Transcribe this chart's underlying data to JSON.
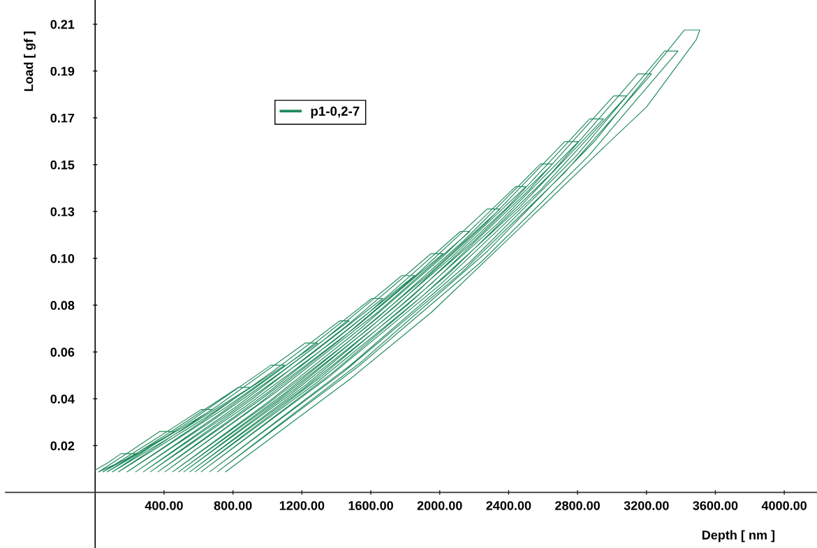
{
  "chart_data": {
    "type": "line",
    "xlabel": "Depth [ nm ]",
    "ylabel": "Load [ gf ]",
    "legend": "top left",
    "xlim": [
      -520,
      4190
    ],
    "ylim": [
      -0.0248,
      0.2198
    ],
    "xticks": [
      {
        "value": 400,
        "label": "400.00"
      },
      {
        "value": 800,
        "label": "800.00"
      },
      {
        "value": 1200,
        "label": "1200.00"
      },
      {
        "value": 1600,
        "label": "1600.00"
      },
      {
        "value": 2000,
        "label": "2000.00"
      },
      {
        "value": 2400,
        "label": "2400.00"
      },
      {
        "value": 2800,
        "label": "2800.00"
      },
      {
        "value": 3200,
        "label": "3200.00"
      },
      {
        "value": 3600,
        "label": "3600.00"
      },
      {
        "value": 4000,
        "label": "4000.00"
      }
    ],
    "yticks": [
      {
        "value": 0.0209,
        "label": "0.02"
      },
      {
        "value": 0.0418,
        "label": "0.04"
      },
      {
        "value": 0.0627,
        "label": "0.06"
      },
      {
        "value": 0.0836,
        "label": "0.08"
      },
      {
        "value": 0.1045,
        "label": "0.10"
      },
      {
        "value": 0.1254,
        "label": "0.13"
      },
      {
        "value": 0.1463,
        "label": "0.15"
      },
      {
        "value": 0.1672,
        "label": "0.17"
      },
      {
        "value": 0.1881,
        "label": "0.19"
      },
      {
        "value": 0.209,
        "label": "0.21"
      }
    ],
    "x": [
      0,
      75,
      150,
      250,
      136,
      20,
      200,
      375,
      465,
      257,
      45,
      335,
      615,
      680,
      380,
      70,
      459,
      830,
      900,
      510,
      100,
      574,
      1020,
      1100,
      632,
      135,
      698,
      1220,
      1292,
      759,
      185,
      621,
      1033,
      1420,
      1475,
      1086,
      673,
      235,
      723,
      1180,
      1605,
      1670,
      1239,
      775,
      280,
      820,
      1320,
      1780,
      1855,
      1384,
      872,
      320,
      912,
      1455,
      1950,
      2020,
      1518,
      966,
      365,
      1009,
      1594,
      2120,
      2175,
      1644,
      1054,
      405,
      931,
      1418,
      1866,
      2275,
      2350,
      1934,
      1479,
      984,
      450,
      1016,
      1536,
      2011,
      2440,
      2500,
      2065,
      1585,
      1058,
      485,
      1089,
      1640,
      2139,
      2585,
      2655,
      2201,
      1692,
      1131,
      515,
      1158,
      1741,
      2263,
      2725,
      2805,
      2334,
      1801,
      1206,
      550,
      1233,
      1847,
      2393,
      2870,
      2950,
      2463,
      1905,
      1278,
      580,
      1304,
      1951,
      2519,
      3010,
      3085,
      2586,
      2008,
      1351,
      615,
      1380,
      2057,
      2647,
      3150,
      3230,
      2721,
      2124,
      1439,
      665,
      1472,
      2180,
      2792,
      3305,
      3383,
      2863,
      2244,
      1527,
      710,
      1548,
      2279,
      2903,
      3420,
      3510,
      3489,
      3200,
      3000,
      2395,
      1955,
      1480,
      757
    ],
    "series": [
      {
        "name": "p1-0,2-7",
        "color": "#228b5e",
        "values": [
          0.01,
          0.0133,
          0.0173,
          0.0173,
          0.0133,
          0.0092,
          0.0182,
          0.0272,
          0.0272,
          0.0182,
          0.0092,
          0.0231,
          0.037,
          0.037,
          0.0231,
          0.0092,
          0.0281,
          0.0469,
          0.0469,
          0.0281,
          0.0092,
          0.033,
          0.0568,
          0.0568,
          0.033,
          0.0092,
          0.038,
          0.0667,
          0.0667,
          0.038,
          0.0092,
          0.0317,
          0.0541,
          0.0766,
          0.0766,
          0.0541,
          0.0317,
          0.0092,
          0.035,
          0.0608,
          0.0866,
          0.0866,
          0.0608,
          0.035,
          0.0092,
          0.0384,
          0.0676,
          0.0968,
          0.0968,
          0.0676,
          0.0384,
          0.0092,
          0.0417,
          0.0741,
          0.1066,
          0.1066,
          0.0741,
          0.0417,
          0.0092,
          0.045,
          0.0807,
          0.1165,
          0.1165,
          0.0807,
          0.045,
          0.0092,
          0.0385,
          0.0679,
          0.0972,
          0.1265,
          0.1265,
          0.0972,
          0.0679,
          0.0385,
          0.0092,
          0.041,
          0.0729,
          0.1047,
          0.1365,
          0.1365,
          0.1047,
          0.0729,
          0.041,
          0.0092,
          0.0436,
          0.0779,
          0.1123,
          0.1466,
          0.1466,
          0.1123,
          0.0779,
          0.0436,
          0.0092,
          0.0461,
          0.0829,
          0.1198,
          0.1566,
          0.1566,
          0.1198,
          0.0829,
          0.0461,
          0.0092,
          0.0486,
          0.088,
          0.1273,
          0.1667,
          0.1667,
          0.1273,
          0.088,
          0.0486,
          0.0092,
          0.0512,
          0.0931,
          0.1351,
          0.177,
          0.177,
          0.1351,
          0.0931,
          0.0512,
          0.0092,
          0.0536,
          0.098,
          0.1424,
          0.1868,
          0.1868,
          0.1424,
          0.098,
          0.0536,
          0.0092,
          0.0562,
          0.1031,
          0.1501,
          0.197,
          0.197,
          0.1501,
          0.1031,
          0.0562,
          0.0092,
          0.0585,
          0.1078,
          0.1571,
          0.2064,
          0.2064,
          0.2021,
          0.172,
          0.1575,
          0.1129,
          0.0806,
          0.0506,
          0.0092
        ]
      }
    ]
  }
}
